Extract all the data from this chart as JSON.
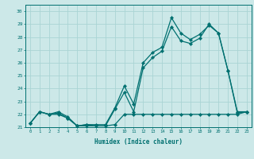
{
  "xlabel": "Humidex (Indice chaleur)",
  "bg_color": "#cce8e8",
  "grid_color": "#aad4d4",
  "line_color": "#007070",
  "xlim": [
    -0.5,
    23.5
  ],
  "ylim": [
    21.0,
    30.5
  ],
  "xticks": [
    0,
    1,
    2,
    3,
    4,
    5,
    6,
    7,
    8,
    9,
    10,
    11,
    12,
    13,
    14,
    15,
    16,
    17,
    18,
    19,
    20,
    21,
    22,
    23
  ],
  "yticks": [
    21,
    22,
    23,
    24,
    25,
    26,
    27,
    28,
    29,
    30
  ],
  "series1_x": [
    0,
    1,
    2,
    3,
    4,
    5,
    6,
    7,
    8,
    9,
    10,
    11,
    12,
    13,
    14,
    15,
    16,
    17,
    18,
    19,
    20,
    21,
    22,
    23
  ],
  "series1_y": [
    21.3,
    22.2,
    22.0,
    22.2,
    21.8,
    21.1,
    21.2,
    21.2,
    21.2,
    22.5,
    24.2,
    22.8,
    26.0,
    26.8,
    27.2,
    29.5,
    28.3,
    27.8,
    28.2,
    28.9,
    28.3,
    25.4,
    22.2,
    22.2
  ],
  "series2_x": [
    0,
    1,
    2,
    3,
    4,
    5,
    6,
    7,
    8,
    9,
    10,
    11,
    12,
    13,
    14,
    15,
    16,
    17,
    18,
    19,
    20,
    21,
    22,
    23
  ],
  "series2_y": [
    21.3,
    22.2,
    22.0,
    22.1,
    21.7,
    21.1,
    21.2,
    21.1,
    21.1,
    22.4,
    23.7,
    22.2,
    25.6,
    26.4,
    26.9,
    28.8,
    27.7,
    27.5,
    27.9,
    29.0,
    28.3,
    25.4,
    22.1,
    22.2
  ],
  "series3_x": [
    0,
    1,
    2,
    3,
    4,
    5,
    6,
    7,
    8,
    9,
    10,
    11,
    12,
    13,
    14,
    15,
    16,
    17,
    18,
    19,
    20,
    21,
    22,
    23
  ],
  "series3_y": [
    21.3,
    22.2,
    22.0,
    22.0,
    21.7,
    21.1,
    21.1,
    21.1,
    21.1,
    21.2,
    22.0,
    22.0,
    22.0,
    22.0,
    22.0,
    22.0,
    22.0,
    22.0,
    22.0,
    22.0,
    22.0,
    22.0,
    22.0,
    22.2
  ]
}
